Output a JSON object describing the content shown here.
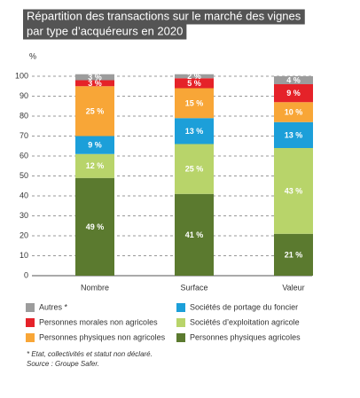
{
  "chart_data": {
    "type": "stacked_bar",
    "title": [
      "Répartition des transactions sur le marché des vignes",
      "par type d’acquéreurs en 2020"
    ],
    "y_label": "%",
    "categories": [
      "Nombre",
      "Surface",
      "Valeur"
    ],
    "ylim": [
      0,
      100
    ],
    "yticks": [
      0,
      10,
      20,
      30,
      40,
      50,
      60,
      70,
      80,
      90,
      100
    ],
    "grid": true,
    "series": [
      {
        "name": "Personnes physiques agricoles",
        "color": "#5b7a2f",
        "values": [
          49,
          41,
          21
        ],
        "value_labels": [
          "49 %",
          "41 %",
          "21 %"
        ]
      },
      {
        "name": "Sociétés d’exploitation agricole",
        "color": "#b8d46a",
        "values": [
          12,
          25,
          43
        ],
        "value_labels": [
          "12 %",
          "25 %",
          "43 %"
        ]
      },
      {
        "name": "Sociétés de portage du foncier",
        "color": "#1c9fd9",
        "values": [
          9,
          13,
          13
        ],
        "value_labels": [
          "9 %",
          "13 %",
          "13 %"
        ]
      },
      {
        "name": "Personnes physiques non agricoles",
        "color": "#f8a637",
        "values": [
          25,
          15,
          10
        ],
        "value_labels": [
          "25 %",
          "15 %",
          "10 %"
        ]
      },
      {
        "name": "Personnes morales non agricoles",
        "color": "#e52229",
        "values": [
          3,
          5,
          9
        ],
        "value_labels": [
          "3 %",
          "5 %",
          "9 %"
        ]
      },
      {
        "name": "Autres *",
        "color": "#9c9c9c",
        "values": [
          3,
          2,
          4
        ],
        "value_labels": [
          "3 %",
          "2 %",
          "4 %"
        ]
      }
    ],
    "notes": [
      "* Etat, collectivités et statut non déclaré.",
      "Source : Groupe Safer."
    ]
  }
}
